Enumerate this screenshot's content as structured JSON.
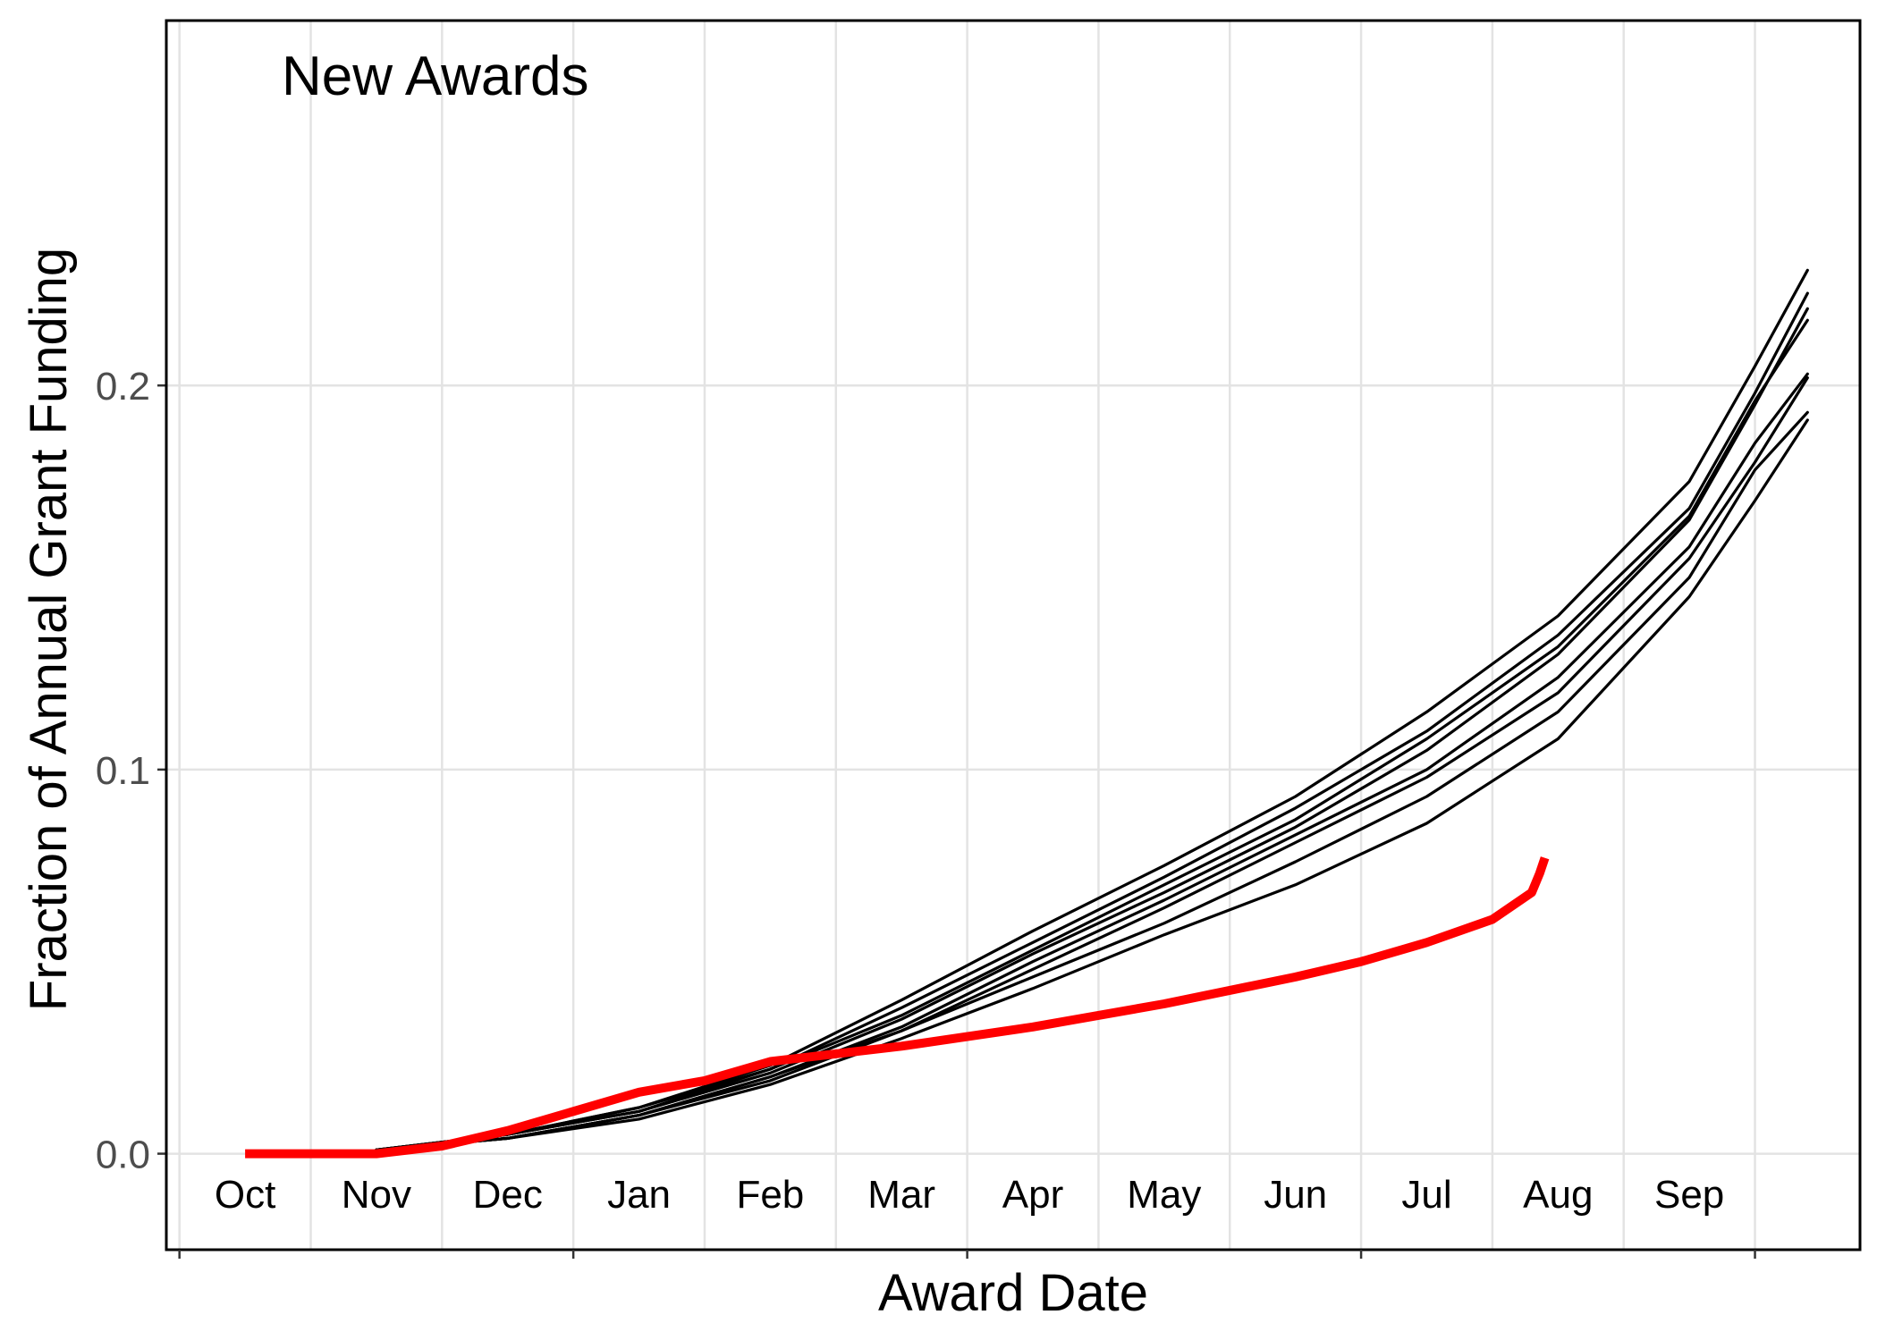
{
  "chart_data": {
    "type": "line",
    "title": "",
    "annotation": "New Awards",
    "xlabel": "Award Date",
    "ylabel": "Fraction of Annual Grant Funding",
    "x_unit": "month of fiscal year (Oct = 0)",
    "xlim": [
      -0.6,
      12.3
    ],
    "ylim": [
      -0.025,
      0.295
    ],
    "grid": true,
    "legend": "none",
    "month_labels": [
      "Oct",
      "Nov",
      "Dec",
      "Jan",
      "Feb",
      "Mar",
      "Apr",
      "May",
      "Jun",
      "Jul",
      "Aug",
      "Sep"
    ],
    "y_ticks": [
      0.0,
      0.1,
      0.2
    ],
    "y_tick_labels": [
      "0.0",
      "0.1",
      "0.2"
    ],
    "colors": {
      "historical": "#000000",
      "current": "#ff0000",
      "grid": "#e3e3e3",
      "axis_text": "#4d4d4d"
    },
    "series": [
      {
        "color": "#000000",
        "x": [
          1.0,
          2.0,
          3.0,
          4.0,
          5.0,
          6.0,
          7.0,
          8.0,
          9.0,
          10.0,
          11.0,
          11.5,
          11.9
        ],
        "y": [
          0.001,
          0.005,
          0.012,
          0.023,
          0.04,
          0.058,
          0.075,
          0.093,
          0.115,
          0.14,
          0.175,
          0.205,
          0.23
        ]
      },
      {
        "color": "#000000",
        "x": [
          1.0,
          2.0,
          3.0,
          4.0,
          5.0,
          6.0,
          7.0,
          8.0,
          9.0,
          10.0,
          11.0,
          11.5,
          11.9
        ],
        "y": [
          0.001,
          0.005,
          0.012,
          0.022,
          0.038,
          0.055,
          0.072,
          0.09,
          0.11,
          0.135,
          0.168,
          0.198,
          0.224
        ]
      },
      {
        "color": "#000000",
        "x": [
          1.0,
          2.0,
          3.0,
          4.0,
          5.0,
          6.0,
          7.0,
          8.0,
          9.0,
          10.0,
          11.0,
          11.5,
          11.9
        ],
        "y": [
          0.001,
          0.005,
          0.011,
          0.021,
          0.035,
          0.052,
          0.068,
          0.085,
          0.105,
          0.13,
          0.165,
          0.195,
          0.22
        ]
      },
      {
        "color": "#000000",
        "x": [
          1.0,
          2.0,
          3.0,
          4.0,
          5.0,
          6.0,
          7.0,
          8.0,
          9.0,
          10.0,
          11.0,
          11.5,
          11.9
        ],
        "y": [
          0.001,
          0.005,
          0.011,
          0.022,
          0.036,
          0.053,
          0.07,
          0.087,
          0.108,
          0.132,
          0.166,
          0.196,
          0.217
        ]
      },
      {
        "color": "#000000",
        "x": [
          1.0,
          2.0,
          3.0,
          4.0,
          5.0,
          6.0,
          7.0,
          8.0,
          9.0,
          10.0,
          11.0,
          11.5,
          11.9
        ],
        "y": [
          0.001,
          0.004,
          0.01,
          0.02,
          0.033,
          0.05,
          0.066,
          0.083,
          0.1,
          0.124,
          0.158,
          0.185,
          0.203
        ]
      },
      {
        "color": "#000000",
        "x": [
          1.0,
          2.0,
          3.0,
          4.0,
          5.0,
          6.0,
          7.0,
          8.0,
          9.0,
          10.0,
          11.0,
          11.5,
          11.9
        ],
        "y": [
          0.001,
          0.004,
          0.01,
          0.019,
          0.032,
          0.048,
          0.064,
          0.081,
          0.098,
          0.12,
          0.155,
          0.18,
          0.202
        ]
      },
      {
        "color": "#000000",
        "x": [
          1.0,
          2.0,
          3.0,
          4.0,
          5.0,
          6.0,
          7.0,
          8.0,
          9.0,
          10.0,
          11.0,
          11.5,
          11.9
        ],
        "y": [
          0.001,
          0.004,
          0.01,
          0.02,
          0.032,
          0.046,
          0.06,
          0.076,
          0.093,
          0.115,
          0.15,
          0.178,
          0.193
        ]
      },
      {
        "color": "#000000",
        "x": [
          1.0,
          2.0,
          3.0,
          4.0,
          5.0,
          6.0,
          7.0,
          8.0,
          9.0,
          10.0,
          11.0,
          11.5,
          11.9
        ],
        "y": [
          0.001,
          0.004,
          0.009,
          0.018,
          0.03,
          0.043,
          0.057,
          0.07,
          0.086,
          0.108,
          0.145,
          0.17,
          0.191
        ]
      },
      {
        "color": "#ff0000",
        "x": [
          0.0,
          0.5,
          1.0,
          1.5,
          2.0,
          2.5,
          3.0,
          3.5,
          4.0,
          5.0,
          6.0,
          7.0,
          8.0,
          8.5,
          9.0,
          9.5,
          9.8,
          9.86,
          9.9
        ],
        "y": [
          0.0,
          0.0,
          0.0,
          0.002,
          0.006,
          0.011,
          0.016,
          0.019,
          0.024,
          0.028,
          0.033,
          0.039,
          0.046,
          0.05,
          0.055,
          0.061,
          0.068,
          0.073,
          0.077
        ]
      }
    ]
  }
}
